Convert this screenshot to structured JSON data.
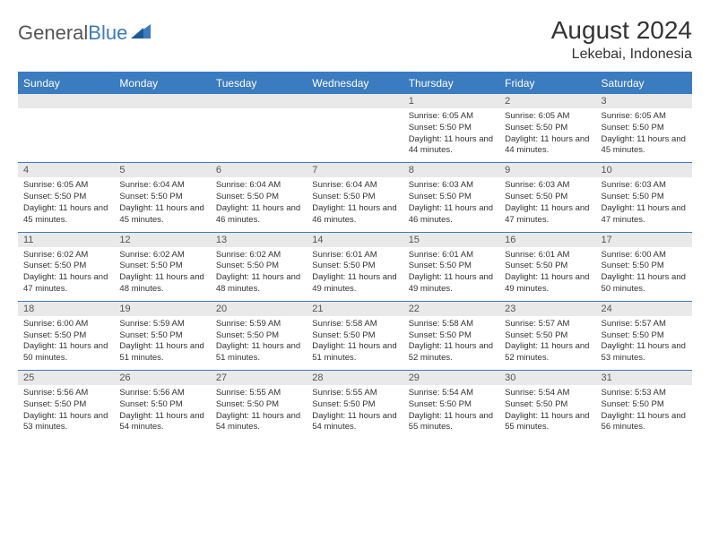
{
  "brand": {
    "part1": "General",
    "part2": "Blue"
  },
  "title": "August 2024",
  "location": "Lekebai, Indonesia",
  "colors": {
    "header_bg": "#3b7bbf",
    "header_text": "#ffffff",
    "daynum_bg": "#e9e9e9",
    "daynum_text": "#555555",
    "body_text": "#333333",
    "rule": "#3b7bbf",
    "page_bg": "#ffffff",
    "logo_gray": "#555555",
    "logo_blue": "#3b7bbf"
  },
  "typography": {
    "title_fontsize": 28,
    "subtitle_fontsize": 16,
    "dayheader_fontsize": 12,
    "daynum_fontsize": 11,
    "body_fontsize": 9.5
  },
  "calendar": {
    "type": "table",
    "columns": [
      "Sunday",
      "Monday",
      "Tuesday",
      "Wednesday",
      "Thursday",
      "Friday",
      "Saturday"
    ],
    "first_weekday_index": 4,
    "days": [
      {
        "n": 1,
        "sunrise": "6:05 AM",
        "sunset": "5:50 PM",
        "daylight": "11 hours and 44 minutes."
      },
      {
        "n": 2,
        "sunrise": "6:05 AM",
        "sunset": "5:50 PM",
        "daylight": "11 hours and 44 minutes."
      },
      {
        "n": 3,
        "sunrise": "6:05 AM",
        "sunset": "5:50 PM",
        "daylight": "11 hours and 45 minutes."
      },
      {
        "n": 4,
        "sunrise": "6:05 AM",
        "sunset": "5:50 PM",
        "daylight": "11 hours and 45 minutes."
      },
      {
        "n": 5,
        "sunrise": "6:04 AM",
        "sunset": "5:50 PM",
        "daylight": "11 hours and 45 minutes."
      },
      {
        "n": 6,
        "sunrise": "6:04 AM",
        "sunset": "5:50 PM",
        "daylight": "11 hours and 46 minutes."
      },
      {
        "n": 7,
        "sunrise": "6:04 AM",
        "sunset": "5:50 PM",
        "daylight": "11 hours and 46 minutes."
      },
      {
        "n": 8,
        "sunrise": "6:03 AM",
        "sunset": "5:50 PM",
        "daylight": "11 hours and 46 minutes."
      },
      {
        "n": 9,
        "sunrise": "6:03 AM",
        "sunset": "5:50 PM",
        "daylight": "11 hours and 47 minutes."
      },
      {
        "n": 10,
        "sunrise": "6:03 AM",
        "sunset": "5:50 PM",
        "daylight": "11 hours and 47 minutes."
      },
      {
        "n": 11,
        "sunrise": "6:02 AM",
        "sunset": "5:50 PM",
        "daylight": "11 hours and 47 minutes."
      },
      {
        "n": 12,
        "sunrise": "6:02 AM",
        "sunset": "5:50 PM",
        "daylight": "11 hours and 48 minutes."
      },
      {
        "n": 13,
        "sunrise": "6:02 AM",
        "sunset": "5:50 PM",
        "daylight": "11 hours and 48 minutes."
      },
      {
        "n": 14,
        "sunrise": "6:01 AM",
        "sunset": "5:50 PM",
        "daylight": "11 hours and 49 minutes."
      },
      {
        "n": 15,
        "sunrise": "6:01 AM",
        "sunset": "5:50 PM",
        "daylight": "11 hours and 49 minutes."
      },
      {
        "n": 16,
        "sunrise": "6:01 AM",
        "sunset": "5:50 PM",
        "daylight": "11 hours and 49 minutes."
      },
      {
        "n": 17,
        "sunrise": "6:00 AM",
        "sunset": "5:50 PM",
        "daylight": "11 hours and 50 minutes."
      },
      {
        "n": 18,
        "sunrise": "6:00 AM",
        "sunset": "5:50 PM",
        "daylight": "11 hours and 50 minutes."
      },
      {
        "n": 19,
        "sunrise": "5:59 AM",
        "sunset": "5:50 PM",
        "daylight": "11 hours and 51 minutes."
      },
      {
        "n": 20,
        "sunrise": "5:59 AM",
        "sunset": "5:50 PM",
        "daylight": "11 hours and 51 minutes."
      },
      {
        "n": 21,
        "sunrise": "5:58 AM",
        "sunset": "5:50 PM",
        "daylight": "11 hours and 51 minutes."
      },
      {
        "n": 22,
        "sunrise": "5:58 AM",
        "sunset": "5:50 PM",
        "daylight": "11 hours and 52 minutes."
      },
      {
        "n": 23,
        "sunrise": "5:57 AM",
        "sunset": "5:50 PM",
        "daylight": "11 hours and 52 minutes."
      },
      {
        "n": 24,
        "sunrise": "5:57 AM",
        "sunset": "5:50 PM",
        "daylight": "11 hours and 53 minutes."
      },
      {
        "n": 25,
        "sunrise": "5:56 AM",
        "sunset": "5:50 PM",
        "daylight": "11 hours and 53 minutes."
      },
      {
        "n": 26,
        "sunrise": "5:56 AM",
        "sunset": "5:50 PM",
        "daylight": "11 hours and 54 minutes."
      },
      {
        "n": 27,
        "sunrise": "5:55 AM",
        "sunset": "5:50 PM",
        "daylight": "11 hours and 54 minutes."
      },
      {
        "n": 28,
        "sunrise": "5:55 AM",
        "sunset": "5:50 PM",
        "daylight": "11 hours and 54 minutes."
      },
      {
        "n": 29,
        "sunrise": "5:54 AM",
        "sunset": "5:50 PM",
        "daylight": "11 hours and 55 minutes."
      },
      {
        "n": 30,
        "sunrise": "5:54 AM",
        "sunset": "5:50 PM",
        "daylight": "11 hours and 55 minutes."
      },
      {
        "n": 31,
        "sunrise": "5:53 AM",
        "sunset": "5:50 PM",
        "daylight": "11 hours and 56 minutes."
      }
    ],
    "labels": {
      "sunrise_prefix": "Sunrise: ",
      "sunset_prefix": "Sunset: ",
      "daylight_prefix": "Daylight: "
    }
  }
}
